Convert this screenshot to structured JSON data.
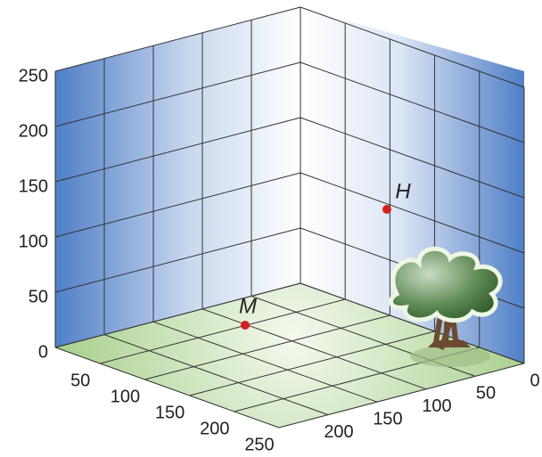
{
  "vertical_axis": {
    "ticks": [
      "0",
      "50",
      "100",
      "150",
      "200",
      "250"
    ]
  },
  "left_floor_axis": {
    "ticks": [
      "50",
      "100",
      "150",
      "200",
      "250"
    ]
  },
  "right_floor_axis": {
    "ticks": [
      "0",
      "50",
      "100",
      "150",
      "200"
    ]
  },
  "points": [
    {
      "label": "M"
    },
    {
      "label": "H"
    }
  ]
}
